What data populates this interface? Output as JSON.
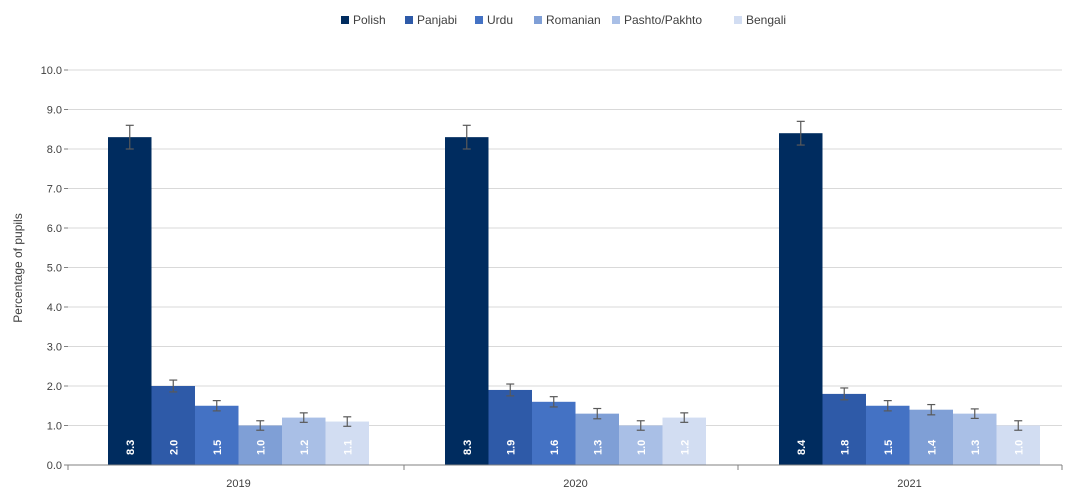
{
  "chart_data": {
    "type": "bar",
    "categories": [
      "2019",
      "2020",
      "2021"
    ],
    "ylabel": "Percentage of pupils",
    "ylim": [
      0,
      10
    ],
    "yticks": [
      "0.0",
      "1.0",
      "2.0",
      "3.0",
      "4.0",
      "5.0",
      "6.0",
      "7.0",
      "8.0",
      "9.0",
      "10.0"
    ],
    "grid": true,
    "legend_position": "top",
    "series": [
      {
        "name": "Polish",
        "color": "#002c5f",
        "values": [
          8.3,
          8.3,
          8.4
        ],
        "labels": [
          "8.3",
          "8.3",
          "8.4"
        ],
        "error": [
          0.3,
          0.3,
          0.3
        ]
      },
      {
        "name": "Panjabi",
        "color": "#2e5aa8",
        "values": [
          2.0,
          1.9,
          1.8
        ],
        "labels": [
          "2.0",
          "1.9",
          "1.8"
        ],
        "error": [
          0.15,
          0.15,
          0.15
        ]
      },
      {
        "name": "Urdu",
        "color": "#4472c4",
        "values": [
          1.5,
          1.6,
          1.5
        ],
        "labels": [
          "1.5",
          "1.6",
          "1.5"
        ],
        "error": [
          0.13,
          0.13,
          0.13
        ]
      },
      {
        "name": "Romanian",
        "color": "#7f9fd6",
        "values": [
          1.0,
          1.3,
          1.4
        ],
        "labels": [
          "1.0",
          "1.3",
          "1.4"
        ],
        "error": [
          0.12,
          0.13,
          0.13
        ]
      },
      {
        "name": "Pashto/Pakhto",
        "color": "#a9bfe6",
        "values": [
          1.2,
          1.0,
          1.3
        ],
        "labels": [
          "1.2",
          "1.0",
          "1.3"
        ],
        "error": [
          0.12,
          0.12,
          0.12
        ]
      },
      {
        "name": "Bengali",
        "color": "#d2ddf2",
        "values": [
          1.1,
          1.2,
          1.0
        ],
        "labels": [
          "1.1",
          "1.2",
          "1.0"
        ],
        "error": [
          0.12,
          0.12,
          0.12
        ]
      }
    ]
  }
}
